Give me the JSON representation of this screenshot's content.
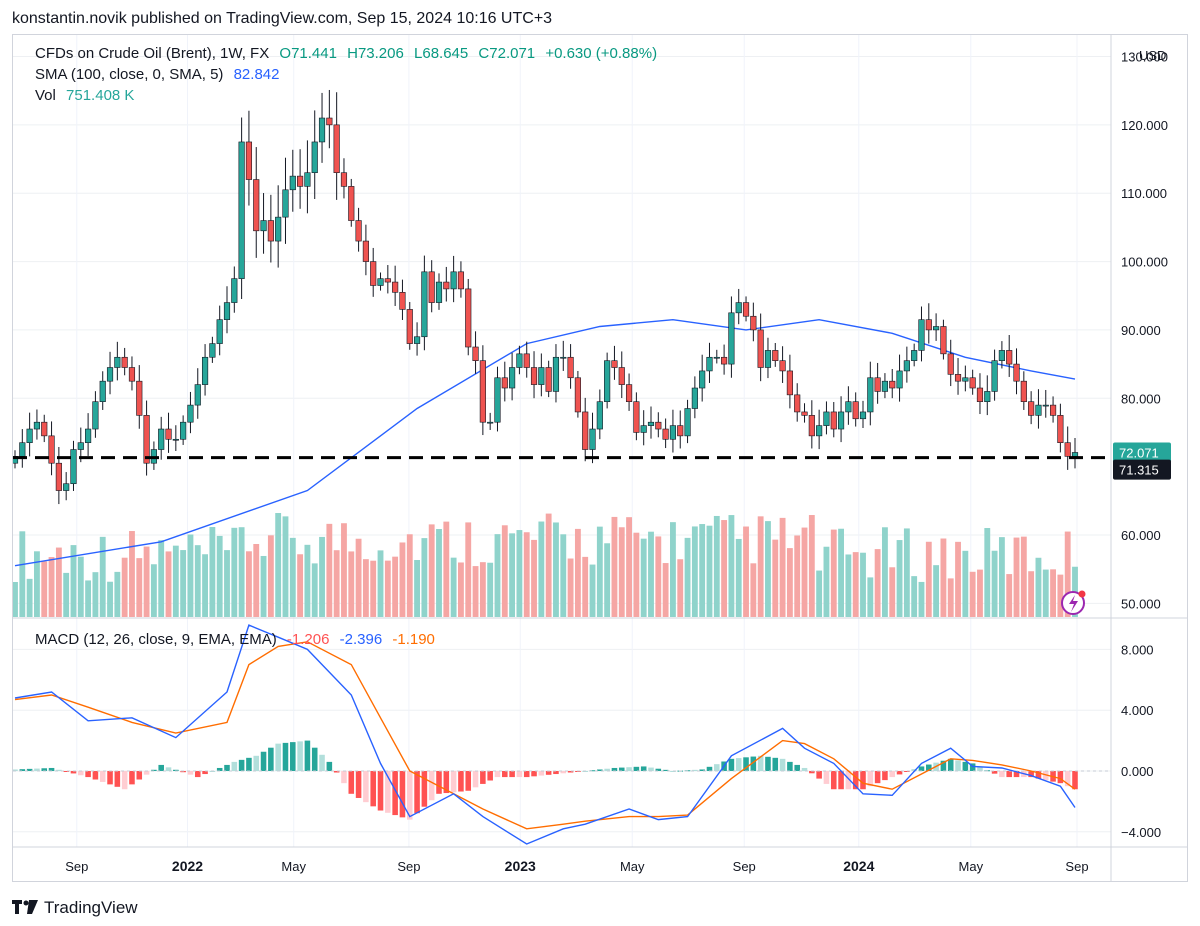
{
  "header": {
    "publisher_line": "konstantin.novik published on TradingView.com, Sep 15, 2024 10:16 UTC+3"
  },
  "legend": {
    "symbol": "CFDs on Crude Oil (Brent), 1W, FX",
    "open": "O71.441",
    "high": "H73.206",
    "low": "L68.645",
    "close": "C72.071",
    "change": "+0.630 (+0.88%)",
    "sma_label": "SMA (100, close, 0, SMA, 5)",
    "sma_value": "82.842",
    "vol_label": "Vol",
    "vol_value": "751.408 K",
    "macd_label": "MACD (12, 26, close, 9, EMA, EMA)",
    "macd_hist": "-1.206",
    "macd_line": "-2.396",
    "macd_signal": "-1.190"
  },
  "axis": {
    "currency": "USD",
    "price_ticks": [
      "130.000",
      "120.000",
      "110.000",
      "100.000",
      "90.000",
      "80.000",
      "60.000",
      "50.000"
    ],
    "macd_ticks": [
      "8.000",
      "4.000",
      "0.000",
      "−4.000"
    ],
    "time_ticks": [
      "Sep",
      "2022",
      "May",
      "Sep",
      "2023",
      "May",
      "Sep",
      "2024",
      "May",
      "Sep"
    ],
    "last_price": "72.071",
    "level_price": "71.315"
  },
  "footer": {
    "brand": "TradingView"
  },
  "colors": {
    "up": "#26a69a",
    "down": "#ef5350",
    "sma": "#2962ff",
    "vol_up": "#8fd3cb",
    "vol_down": "#f5a6a4",
    "macd": "#2962ff",
    "signal": "#ff6d00",
    "hist_pos_strong": "#26a69a",
    "hist_pos_weak": "#b2dfdb",
    "hist_neg_strong": "#ff5252",
    "hist_neg_weak": "#ffcdd2"
  },
  "chart_data": {
    "type": "candlestick",
    "title": "CFDs on Crude Oil (Brent), 1W, FX",
    "start_week": "2021-06-28",
    "interval": "1W",
    "price_ylim": [
      48,
      133
    ],
    "horizontal_level": 71.315,
    "close": [
      71.5,
      73.5,
      75.5,
      76.5,
      74.5,
      70.5,
      66.5,
      67.5,
      72.5,
      73.5,
      75.5,
      79.5,
      82.5,
      84.5,
      86.0,
      84.5,
      82.5,
      77.5,
      70.5,
      72.5,
      75.5,
      74.0,
      74.0,
      76.5,
      79.0,
      82.0,
      86.0,
      88.0,
      91.5,
      94.0,
      97.5,
      117.5,
      112.0,
      104.5,
      106.0,
      103.0,
      106.5,
      110.5,
      112.5,
      111.0,
      113.0,
      117.5,
      121.0,
      120.0,
      113.0,
      111.0,
      106.0,
      103.0,
      100.0,
      96.5,
      97.5,
      97.0,
      95.5,
      93.0,
      88.0,
      89.0,
      98.5,
      94.0,
      97.0,
      96.0,
      98.5,
      96.0,
      87.5,
      85.5,
      76.5,
      76.5,
      83.0,
      81.5,
      84.5,
      86.5,
      84.5,
      82.0,
      84.5,
      81.0,
      86.0,
      86.0,
      83.0,
      78.0,
      72.5,
      75.5,
      79.5,
      85.5,
      84.5,
      82.0,
      79.5,
      75.0,
      76.0,
      76.5,
      75.5,
      74.0,
      76.0,
      74.5,
      78.5,
      81.5,
      84.0,
      86.0,
      86.0,
      85.0,
      92.5,
      94.0,
      92.0,
      90.0,
      84.5,
      87.0,
      85.5,
      84.0,
      80.5,
      78.0,
      77.5,
      74.5,
      76.0,
      78.0,
      75.5,
      78.0,
      79.5,
      77.0,
      78.0,
      83.0,
      81.0,
      82.5,
      81.5,
      84.0,
      85.5,
      87.0,
      91.5,
      90.0,
      90.5,
      86.5,
      83.5,
      82.5,
      83.0,
      81.5,
      79.5,
      81.0,
      85.5,
      87.0,
      85.0,
      82.5,
      79.5,
      77.5,
      79.0,
      79.0,
      77.5,
      73.5,
      71.5,
      72.07
    ],
    "sma": {
      "name": "SMA (100, close, 0, SMA, 5)",
      "x_week": [
        0,
        20,
        40,
        55,
        70,
        80,
        90,
        100,
        110,
        120,
        130,
        139,
        145
      ],
      "values": [
        55.5,
        59.0,
        66.5,
        78.5,
        88.0,
        90.5,
        91.5,
        90.0,
        91.5,
        89.5,
        86.0,
        84.0,
        82.8
      ]
    },
    "volume_ylim": [
      48,
      62
    ],
    "macd": {
      "ylim": [
        -5,
        10
      ],
      "macd_x_week": [
        0,
        5,
        10,
        16,
        22,
        29,
        32,
        36,
        40,
        46,
        50,
        54,
        60,
        64,
        70,
        75,
        78,
        84,
        88,
        92,
        98,
        105,
        108,
        112,
        116,
        120,
        124,
        128,
        131,
        135,
        139,
        143,
        145
      ],
      "macd_values": [
        4.8,
        5.2,
        3.3,
        3.5,
        2.2,
        5.2,
        9.6,
        8.8,
        8.0,
        5.0,
        0.5,
        -3.0,
        -1.5,
        -3.0,
        -4.8,
        -3.8,
        -3.5,
        -2.5,
        -3.2,
        -3.0,
        1.0,
        2.8,
        1.5,
        0.5,
        -1.5,
        -1.6,
        0.5,
        1.5,
        0.3,
        0.2,
        -0.3,
        -1.0,
        -2.4
      ],
      "signal_values": [
        4.7,
        5.0,
        4.2,
        3.2,
        2.5,
        3.2,
        7.0,
        8.2,
        8.5,
        7.0,
        3.5,
        0.0,
        -1.5,
        -2.5,
        -3.8,
        -3.5,
        -3.3,
        -3.0,
        -3.0,
        -2.9,
        -0.5,
        2.0,
        1.8,
        0.8,
        -0.8,
        -1.2,
        -0.2,
        0.8,
        0.7,
        0.4,
        0.0,
        -0.5,
        -1.2
      ],
      "hist_x_week": [
        0,
        5,
        10,
        15,
        20,
        25,
        30,
        33,
        36,
        40,
        43,
        46,
        50,
        54,
        58,
        62,
        66,
        70,
        74,
        78,
        82,
        86,
        90,
        94,
        98,
        102,
        105,
        108,
        112,
        116,
        120,
        124,
        128,
        131,
        135,
        139,
        143,
        145
      ],
      "hist_values": [
        0.1,
        0.2,
        -0.4,
        -1.2,
        0.4,
        -0.4,
        0.6,
        1.0,
        1.8,
        2.0,
        0.6,
        -1.5,
        -2.6,
        -3.2,
        -1.5,
        -1.3,
        -0.4,
        -0.4,
        -0.2,
        0.0,
        0.2,
        0.3,
        0.0,
        0.1,
        0.8,
        1.0,
        0.8,
        0.2,
        -1.2,
        -1.2,
        -0.4,
        0.3,
        0.8,
        0.5,
        -0.4,
        -0.4,
        -0.8,
        -1.2
      ]
    }
  }
}
